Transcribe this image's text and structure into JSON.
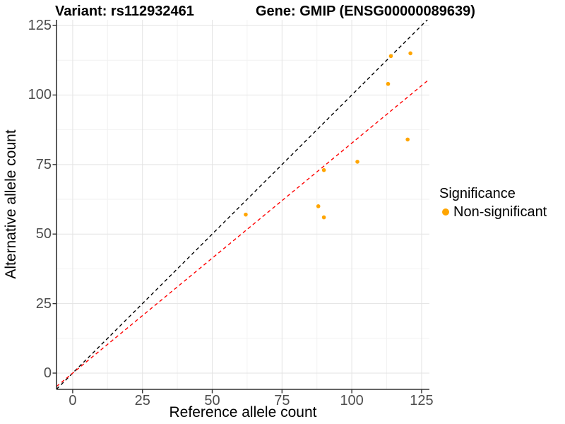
{
  "titles": {
    "left": "Variant: rs112932461",
    "right": "Gene: GMIP (ENSG00000089639)"
  },
  "legend": {
    "title": "Significance",
    "items": [
      {
        "label": "Non-significant",
        "color": "#FFA500"
      }
    ]
  },
  "colors": {
    "background": "#FFFFFF",
    "grid_major": "#E3E3E3",
    "grid_minor": "#F2F2F2",
    "axis_line": "#333333",
    "tick_label": "#4D4D4D",
    "point": "#FFA500",
    "identity_line": "#000000",
    "regression_line": "#FF0000"
  },
  "chart_data": {
    "type": "scatter",
    "title": "Variant: rs112932461   Gene: GMIP (ENSG00000089639)",
    "xlabel": "Reference allele count",
    "ylabel": "Alternative allele count",
    "xlim": [
      -5.8,
      127.8
    ],
    "ylim": [
      -5.85,
      127.05
    ],
    "x_ticks": [
      0,
      25,
      50,
      75,
      100,
      125
    ],
    "y_ticks": [
      0,
      25,
      50,
      75,
      100,
      125
    ],
    "x_minor_ticks": [
      12.5,
      37.5,
      62.5,
      87.5,
      112.5
    ],
    "y_minor_ticks": [
      12.5,
      37.5,
      62.5,
      87.5,
      112.5
    ],
    "grid": true,
    "legend_position": "right",
    "series": [
      {
        "name": "Non-significant",
        "color": "#FFA500",
        "points": [
          [
            62,
            57
          ],
          [
            88,
            60
          ],
          [
            90,
            56
          ],
          [
            90,
            73
          ],
          [
            102,
            76
          ],
          [
            113,
            104
          ],
          [
            114,
            114
          ],
          [
            120,
            84
          ],
          [
            121,
            115
          ]
        ]
      }
    ],
    "lines": [
      {
        "name": "identity-line",
        "slope": 1,
        "intercept": 0,
        "color": "#000000",
        "style": "dashed"
      },
      {
        "name": "regression-line",
        "slope": 0.827,
        "intercept": 0,
        "color": "#FF0000",
        "style": "dashed"
      }
    ]
  }
}
